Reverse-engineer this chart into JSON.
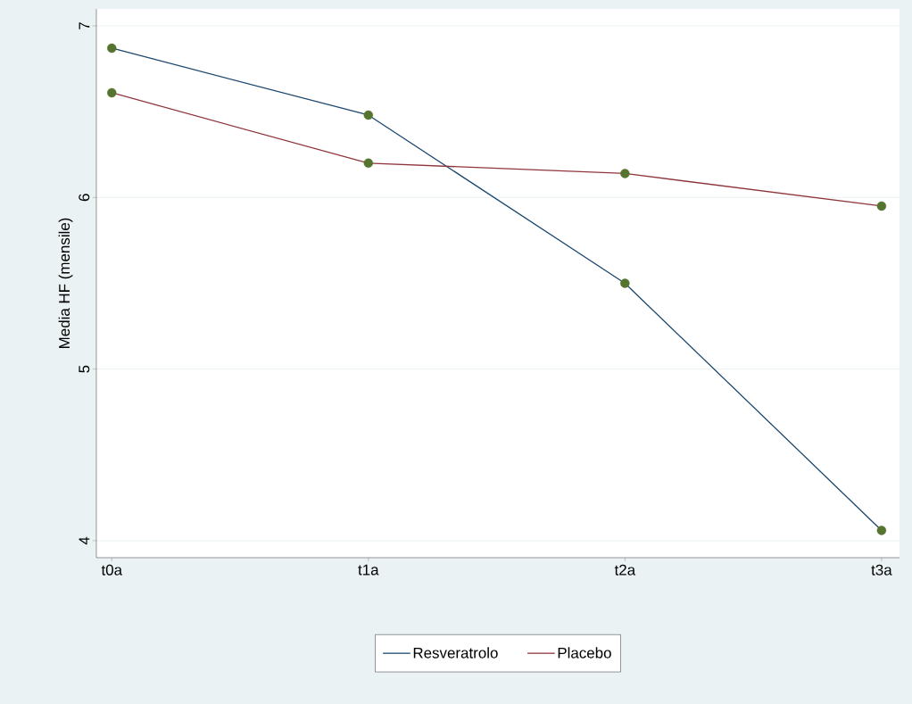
{
  "chart_data": {
    "type": "line",
    "ylabel": "Media HF (mensile)",
    "categories": [
      "t0a",
      "t1a",
      "t2a",
      "t3a"
    ],
    "series": [
      {
        "name": "Resveratrolo",
        "color": "#1a476f",
        "values": [
          6.87,
          6.48,
          5.5,
          4.06
        ]
      },
      {
        "name": "Placebo",
        "color": "#90353b",
        "values": [
          6.61,
          6.2,
          6.14,
          5.95
        ]
      },
      {
        "type": "scatter",
        "marker": "circle",
        "color": "#55752f",
        "values": [
          6.87,
          6.48,
          5.5,
          4.06
        ]
      },
      {
        "type": "scatter",
        "marker": "circle",
        "color": "#55752f",
        "values": [
          6.61,
          6.2,
          6.14,
          5.95
        ]
      }
    ],
    "ylim": [
      4,
      7
    ],
    "yticks": [
      4,
      5,
      6,
      7
    ],
    "grid": "y",
    "legend": "bottom",
    "line_style": "solid"
  }
}
